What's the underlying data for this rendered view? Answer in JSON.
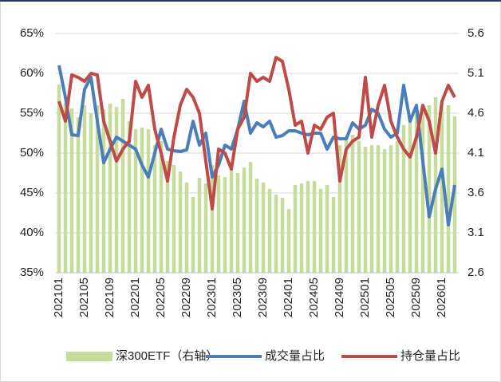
{
  "chart_data": {
    "type": "bar_line_combo",
    "categories": [
      "202101",
      null,
      null,
      null,
      "202105",
      null,
      null,
      null,
      "202109",
      null,
      null,
      null,
      "202201",
      null,
      null,
      null,
      "202205",
      null,
      null,
      null,
      "202209",
      null,
      null,
      null,
      "202301",
      null,
      null,
      null,
      "202305",
      null,
      null,
      null,
      "202309",
      null,
      null,
      null,
      "202401",
      null,
      null,
      null,
      "202405",
      null,
      null,
      null,
      "202409",
      null,
      null,
      null,
      "202501",
      null,
      null,
      null,
      "202505",
      null,
      null,
      null,
      "202509",
      null,
      null,
      null,
      "202601",
      null,
      null
    ],
    "series": [
      {
        "name": "深300ETF（右轴）",
        "type": "bar",
        "axis": "y2",
        "color": "#c5dc9a",
        "values": [
          4.96,
          4.73,
          4.66,
          4.55,
          4.7,
          4.6,
          4.7,
          4.65,
          4.72,
          4.68,
          4.78,
          4.5,
          4.4,
          4.42,
          4.4,
          4.2,
          4.25,
          4.0,
          3.95,
          3.87,
          3.73,
          3.55,
          3.79,
          3.72,
          3.95,
          3.82,
          3.8,
          3.9,
          3.85,
          3.92,
          3.99,
          3.78,
          3.73,
          3.65,
          3.58,
          3.54,
          3.4,
          3.7,
          3.72,
          3.75,
          3.75,
          3.65,
          3.7,
          3.55,
          4.2,
          4.3,
          4.33,
          4.25,
          4.18,
          4.2,
          4.2,
          4.15,
          4.2,
          4.25,
          4.45,
          4.55,
          4.6,
          4.65,
          4.7,
          4.8,
          4.75,
          4.7,
          4.56
        ]
      },
      {
        "name": "成交量占比",
        "type": "line",
        "axis": "y",
        "color": "#4a7ebb",
        "values": [
          61,
          57,
          52.3,
          52.2,
          58,
          59.5,
          54,
          48.8,
          50.5,
          52,
          51.5,
          51,
          50.5,
          48.5,
          47,
          50,
          53,
          50.5,
          50.3,
          50.2,
          50.4,
          54,
          51,
          52.5,
          47,
          48.5,
          51,
          50.5,
          53,
          56.5,
          52.5,
          53.8,
          53.3,
          54,
          52,
          52.2,
          52.8,
          52.8,
          52.5,
          52.3,
          52.5,
          52.5,
          50.5,
          52,
          51.8,
          51.8,
          53.8,
          53,
          53.5,
          55.5,
          55,
          53,
          52,
          52.5,
          58.5,
          54,
          56,
          49,
          42,
          45.5,
          48,
          41,
          46
        ]
      },
      {
        "name": "持仓量占比",
        "type": "line",
        "axis": "y",
        "color": "#be4b48",
        "values": [
          56.5,
          54,
          59.8,
          59.5,
          59,
          60,
          59.8,
          54,
          51.5,
          49,
          50.5,
          51.5,
          59,
          57,
          58.5,
          53,
          50,
          46.5,
          52,
          56,
          58,
          57,
          55,
          49,
          43,
          50.5,
          50,
          48,
          53,
          54.5,
          60,
          59,
          59.5,
          59,
          62,
          61.5,
          58,
          53.5,
          54,
          50,
          53.5,
          53,
          54.5,
          55,
          46.5,
          50.5,
          51.5,
          52,
          59.5,
          52,
          56,
          58.5,
          54,
          52,
          50.5,
          49.5,
          52,
          56,
          54,
          50,
          56.5,
          58.5,
          57
        ]
      }
    ],
    "ylim": [
      35,
      65
    ],
    "yticks": [
      {
        "value": 35,
        "label": "35%"
      },
      {
        "value": 40,
        "label": "40%"
      },
      {
        "value": 45,
        "label": "45%"
      },
      {
        "value": 50,
        "label": "50%"
      },
      {
        "value": 55,
        "label": "55%"
      },
      {
        "value": 60,
        "label": "60%"
      },
      {
        "value": 65,
        "label": "65%"
      }
    ],
    "y2lim": [
      2.6,
      5.6
    ],
    "y2ticks": [
      2.6,
      3.1,
      3.6,
      4.1,
      4.6,
      5.1,
      5.6
    ],
    "grid": true,
    "legend": "bottom"
  }
}
